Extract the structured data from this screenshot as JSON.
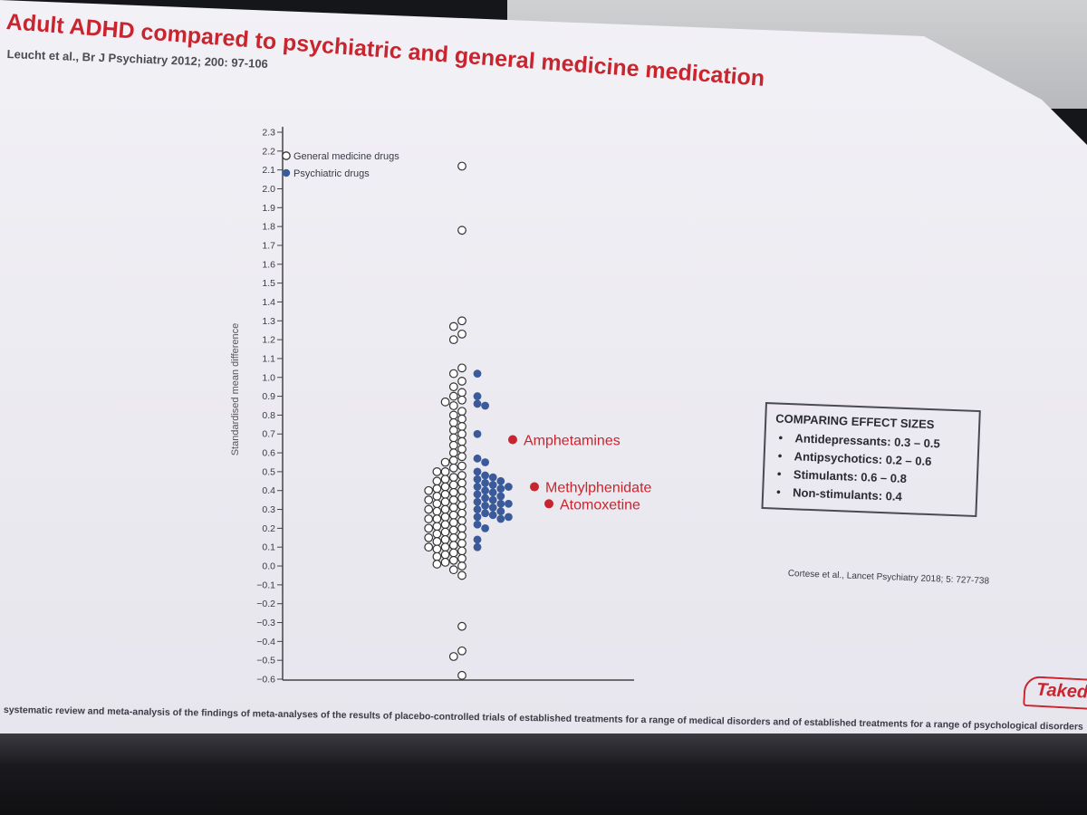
{
  "slide": {
    "title": "Adult ADHD compared to psychiatric and general medicine medication",
    "reference": "Leucht et al., Br J Psychiatry 2012; 200: 97-106",
    "footnote": "systematic review and meta-analysis of the findings of meta-analyses of the results of placebo-controlled trials of established treatments for a range of medical disorders and of established treatments for a range of psychological disorders",
    "secondary_reference": "Cortese et al., Lancet Psychiatry 2018; 5: 727-738",
    "logo_text": "Takeda"
  },
  "effect_sizes": {
    "heading": "COMPARING EFFECT SIZES",
    "items": [
      "Antidepressants: 0.3 – 0.5",
      "Antipsychotics: 0.2 – 0.6",
      "Stimulants: 0.6 – 0.8",
      "Non-stimulants: 0.4"
    ]
  },
  "chart_data": {
    "type": "scatter",
    "title": "",
    "ylabel": "Standardised mean difference",
    "xlabel": "",
    "ylim": [
      -0.6,
      2.3
    ],
    "yticks": [
      "2.3",
      "2.2",
      "2.1",
      "2.0",
      "1.9",
      "1.8",
      "1.7",
      "1.6",
      "1.5",
      "1.4",
      "1.3",
      "1.2",
      "1.1",
      "1.0",
      "0.9",
      "0.8",
      "0.7",
      "0.6",
      "0.5",
      "0.4",
      "0.3",
      "0.2",
      "0.1",
      "0.0",
      "−0.1",
      "−0.2",
      "−0.3",
      "−0.4",
      "−0.5",
      "−0.6"
    ],
    "legend": [
      "General medicine drugs",
      "Psychiatric drugs"
    ],
    "legend_position": "top-left",
    "series": [
      {
        "name": "General medicine drugs",
        "values": [
          2.12,
          1.78,
          1.3,
          1.27,
          1.23,
          1.2,
          1.05,
          1.02,
          0.98,
          0.95,
          0.92,
          0.9,
          0.88,
          0.87,
          0.85,
          0.82,
          0.8,
          0.78,
          0.76,
          0.74,
          0.72,
          0.7,
          0.68,
          0.66,
          0.64,
          0.62,
          0.6,
          0.58,
          0.56,
          0.55,
          0.53,
          0.52,
          0.5,
          0.5,
          0.48,
          0.47,
          0.46,
          0.45,
          0.44,
          0.43,
          0.42,
          0.41,
          0.4,
          0.4,
          0.39,
          0.38,
          0.37,
          0.36,
          0.35,
          0.35,
          0.34,
          0.33,
          0.32,
          0.31,
          0.3,
          0.3,
          0.29,
          0.28,
          0.27,
          0.26,
          0.25,
          0.25,
          0.24,
          0.23,
          0.22,
          0.21,
          0.2,
          0.2,
          0.19,
          0.18,
          0.17,
          0.16,
          0.15,
          0.15,
          0.14,
          0.13,
          0.12,
          0.11,
          0.1,
          0.1,
          0.09,
          0.08,
          0.07,
          0.06,
          0.05,
          0.04,
          0.03,
          0.02,
          0.01,
          0.0,
          -0.02,
          -0.05,
          -0.32,
          -0.45,
          -0.48,
          -0.58
        ]
      },
      {
        "name": "Psychiatric drugs",
        "values": [
          1.02,
          0.9,
          0.86,
          0.85,
          0.7,
          0.57,
          0.55,
          0.5,
          0.48,
          0.47,
          0.46,
          0.45,
          0.44,
          0.43,
          0.42,
          0.42,
          0.41,
          0.4,
          0.39,
          0.38,
          0.37,
          0.36,
          0.35,
          0.34,
          0.33,
          0.33,
          0.32,
          0.31,
          0.3,
          0.29,
          0.28,
          0.27,
          0.26,
          0.26,
          0.25,
          0.22,
          0.2,
          0.14,
          0.1
        ]
      }
    ],
    "highlighted": [
      {
        "label": "Amphetamines",
        "value": 0.67
      },
      {
        "label": "Methylphenidate",
        "value": 0.42
      },
      {
        "label": "Atomoxetine",
        "value": 0.33
      }
    ]
  },
  "colors": {
    "accent": "#c9252f",
    "psychiatric": "#3b5a9a",
    "general": "#ffffff",
    "axis": "#444444"
  }
}
